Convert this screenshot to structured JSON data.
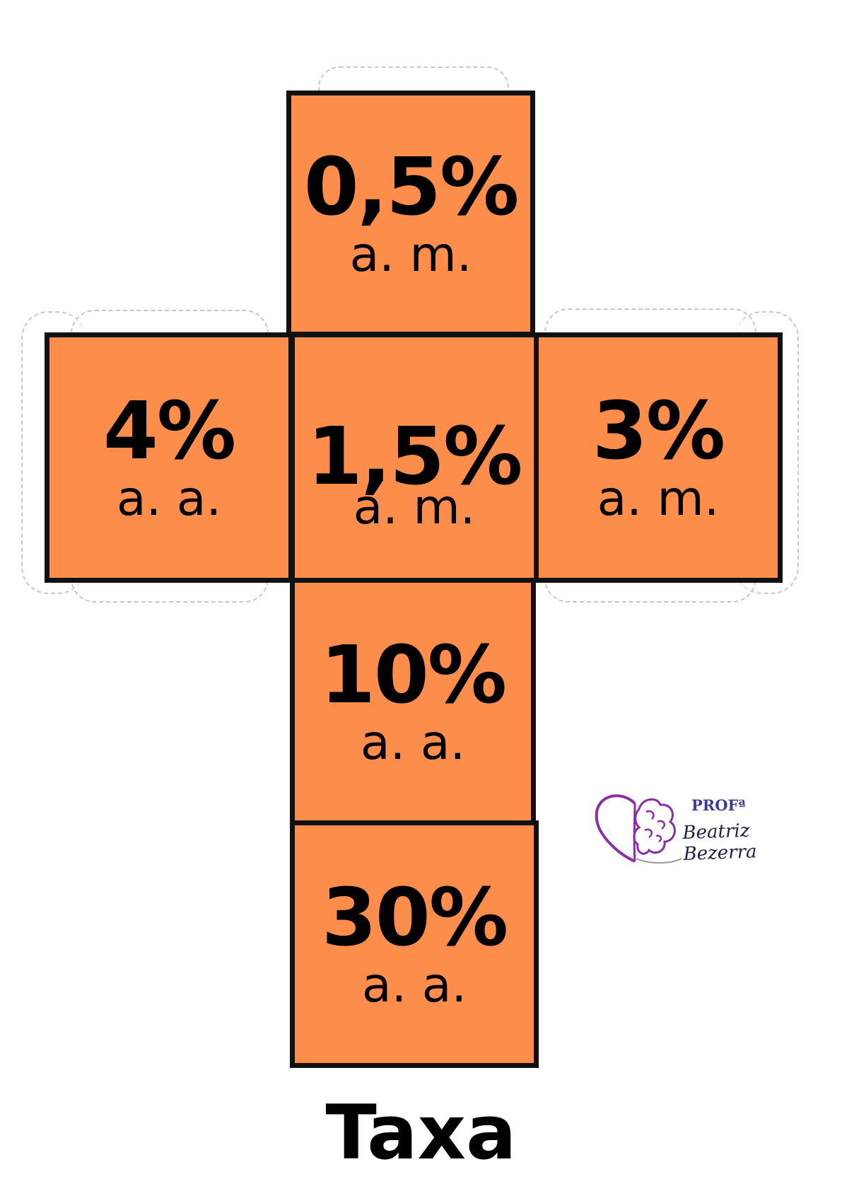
{
  "faces": {
    "top": {
      "rate": "0,5%",
      "unit": "a. m."
    },
    "left": {
      "rate": "4%",
      "unit": "a. a."
    },
    "center": {
      "rate": "1,5%",
      "unit": "a. m."
    },
    "right": {
      "rate": "3%",
      "unit": "a. m."
    },
    "bottom1": {
      "rate": "10%",
      "unit": "a. a."
    },
    "bottom2": {
      "rate": "30%",
      "unit": "a. a."
    }
  },
  "title": "Taxa",
  "logo": {
    "prefix": "PROFª",
    "name": "Beatriz Bezerra"
  },
  "colors": {
    "face": "#fc8d4a",
    "border": "#111111",
    "logo_purple": "#8b2fa8"
  }
}
